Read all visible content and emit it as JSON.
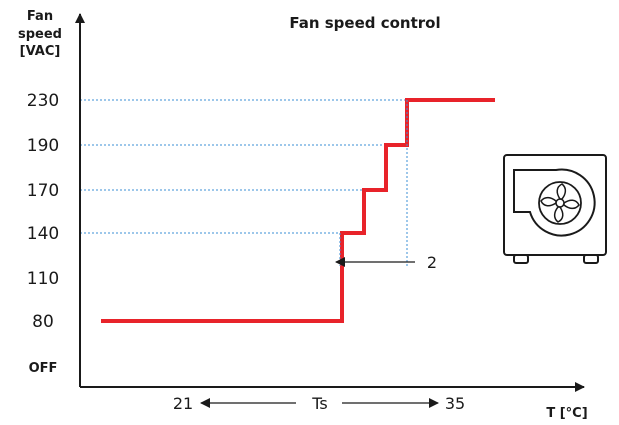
{
  "chart_data": {
    "type": "line",
    "title": "Fan speed control",
    "ylabel": [
      "Fan",
      "speed",
      "[VAC]"
    ],
    "xlabel": "T [°C]",
    "y_categories": [
      "OFF",
      "80",
      "110",
      "140",
      "170",
      "190",
      "230"
    ],
    "step_series": {
      "name": "",
      "color": "#e8232a",
      "points": [
        {
          "x": 21,
          "y": "80"
        },
        {
          "x": 29,
          "y": "80"
        },
        {
          "x": 29,
          "y": "140"
        },
        {
          "x": 30,
          "y": "140"
        },
        {
          "x": 30,
          "y": "170"
        },
        {
          "x": 31,
          "y": "170"
        },
        {
          "x": 31,
          "y": "190"
        },
        {
          "x": 32,
          "y": "190"
        },
        {
          "x": 32,
          "y": "230"
        },
        {
          "x": 35,
          "y": "230"
        }
      ]
    },
    "guide_levels": [
      "140",
      "170",
      "190",
      "230"
    ],
    "x_annotations": {
      "left": "21",
      "center": "Ts",
      "right": "35"
    },
    "band_annotation": "2",
    "grid": "dotted guides at step levels",
    "accent_color": "#e8232a",
    "guide_color": "#3b8fd6",
    "icon": "fan-unit-icon"
  }
}
